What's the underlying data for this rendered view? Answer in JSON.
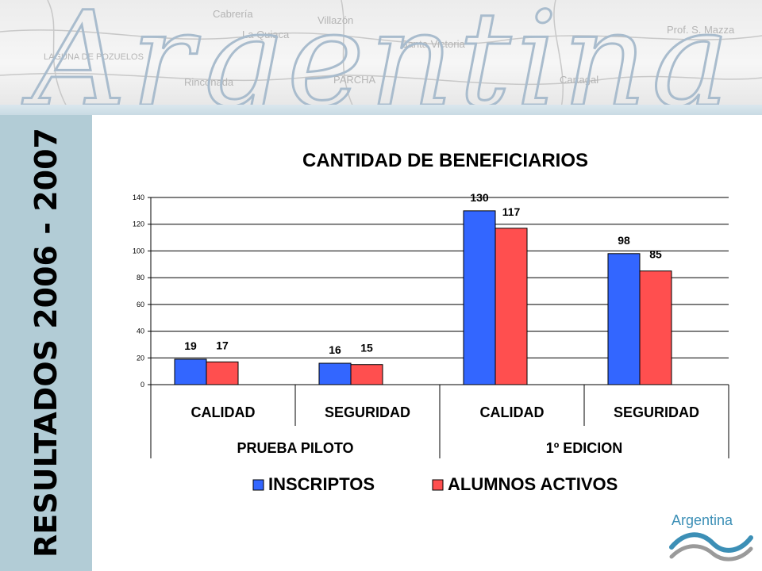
{
  "side_title": "RESULTADOS 2006 -  2007",
  "banner": {
    "script_word": "Argentina",
    "map_labels": [
      "Cabrería",
      "La Quiaca",
      "Villazón",
      "Santa Victoria",
      "Prof. S. Mazza",
      "LAGUNA DE POZUELOS",
      "Rinconada",
      "PARCHA",
      "Cartagal"
    ]
  },
  "logo": {
    "text": "Argentina"
  },
  "colors": {
    "inscriptos": "#3366ff",
    "activos": "#ff4f4f",
    "sidebar": "#b2ccd6",
    "logo_blue": "#3c8fb6"
  },
  "chart_data": {
    "type": "bar",
    "title": "CANTIDAD DE BENEFICIARIOS",
    "categories": [
      "CALIDAD",
      "SEGURIDAD",
      "CALIDAD",
      "SEGURIDAD"
    ],
    "groups": [
      {
        "label": "PRUEBA PILOTO",
        "span": 2
      },
      {
        "label": "1º EDICION",
        "span": 2
      }
    ],
    "series": [
      {
        "name": "INSCRIPTOS",
        "values": [
          19,
          16,
          130,
          98
        ]
      },
      {
        "name": "ALUMNOS ACTIVOS",
        "values": [
          17,
          15,
          117,
          85
        ]
      }
    ],
    "ylim": [
      0,
      140
    ],
    "yticks": [
      0,
      20,
      40,
      60,
      80,
      100,
      120,
      140
    ],
    "grid": true,
    "legend": "bottom"
  }
}
